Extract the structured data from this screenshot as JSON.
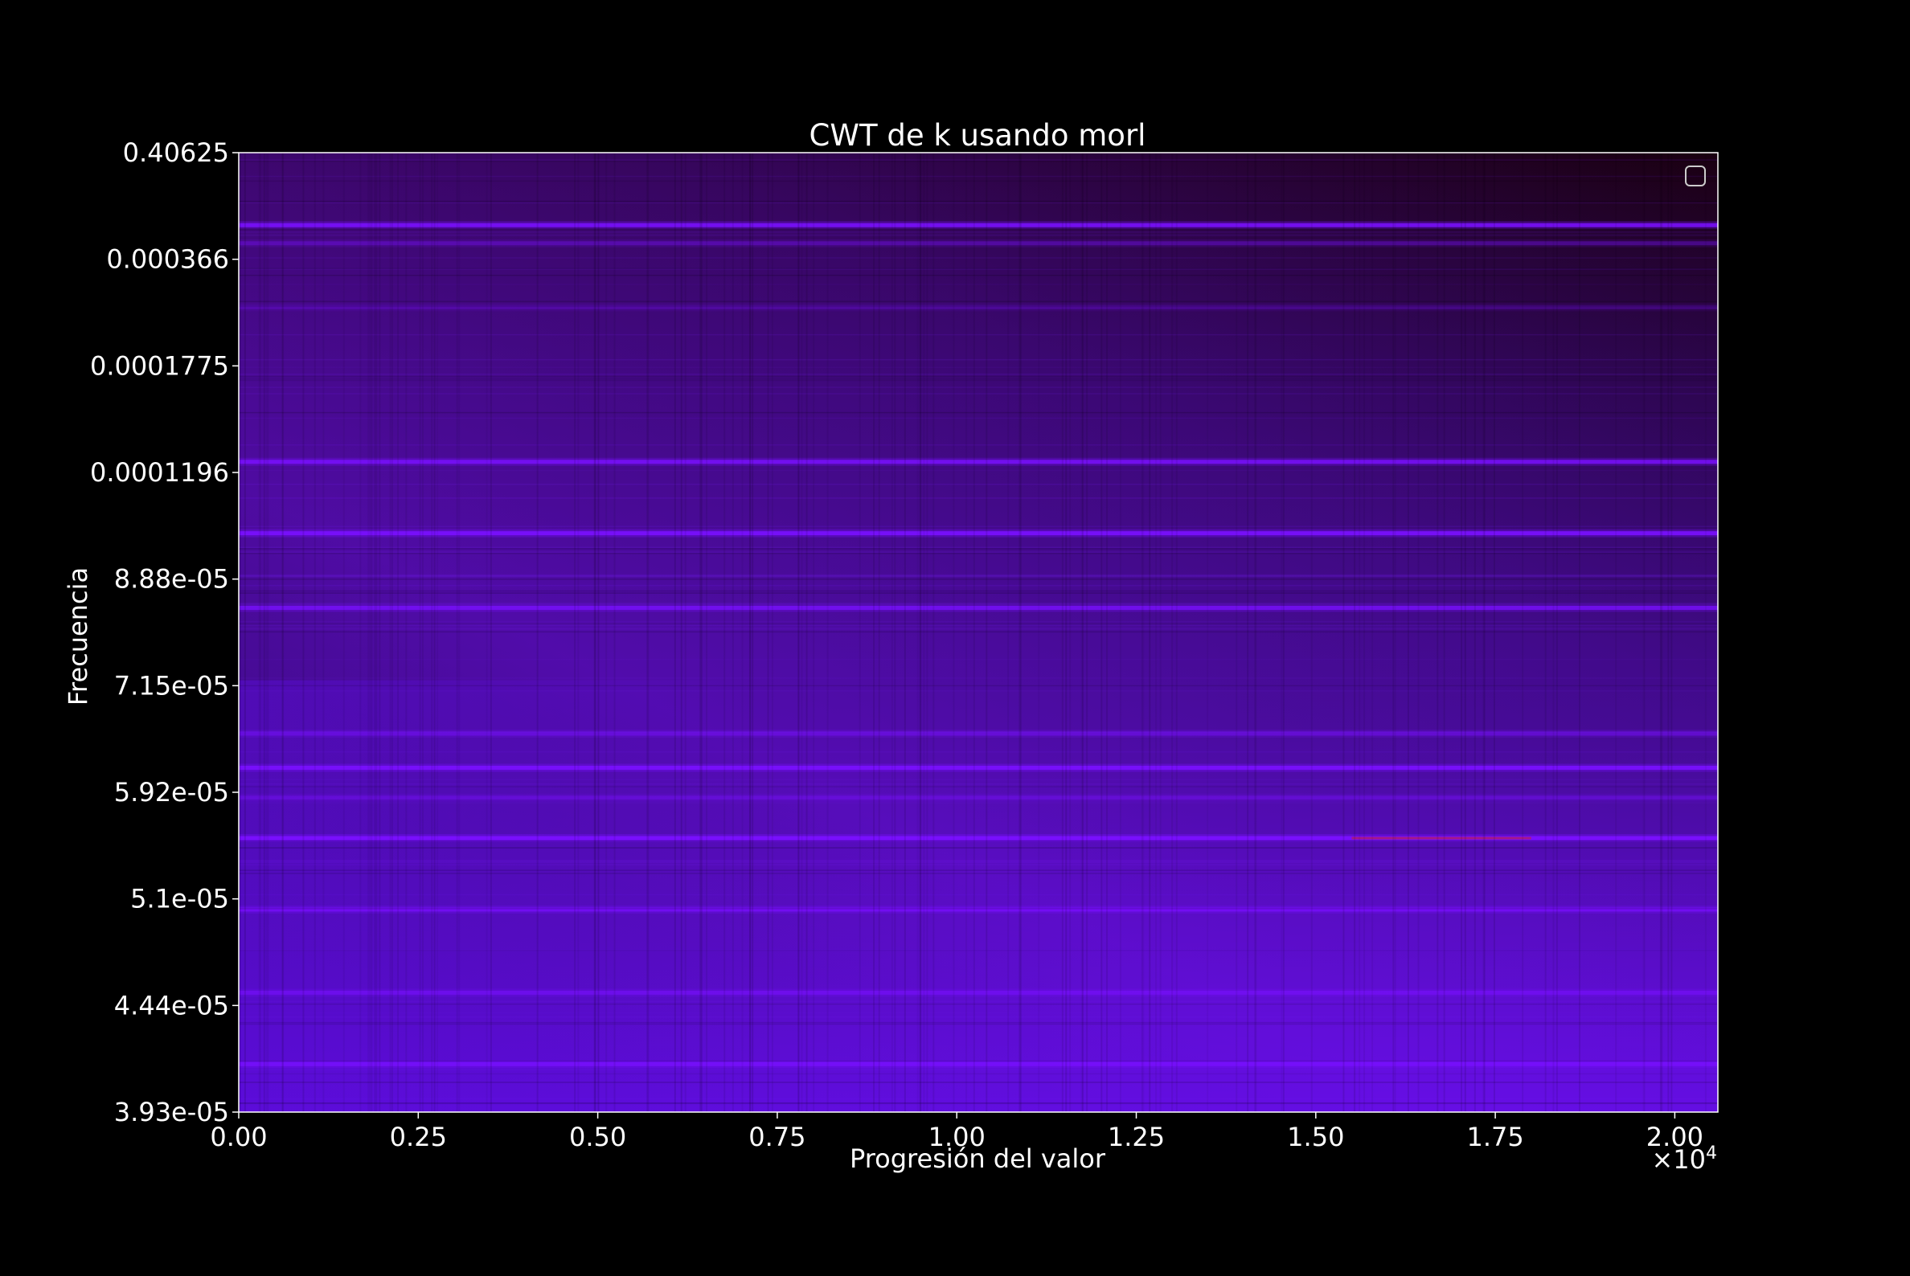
{
  "chart_data": {
    "type": "heatmap",
    "title": "CWT de k usando morl",
    "xlabel": "Progresión del valor",
    "ylabel": "Frecuencia",
    "x_multiplier_label": "×10",
    "x_multiplier_exponent": "4",
    "xlim": [
      0,
      2.06
    ],
    "xticks": [
      {
        "value": 0.0,
        "label": "0.00"
      },
      {
        "value": 0.25,
        "label": "0.25"
      },
      {
        "value": 0.5,
        "label": "0.50"
      },
      {
        "value": 0.75,
        "label": "0.75"
      },
      {
        "value": 1.0,
        "label": "1.00"
      },
      {
        "value": 1.25,
        "label": "1.25"
      },
      {
        "value": 1.5,
        "label": "1.50"
      },
      {
        "value": 1.75,
        "label": "1.75"
      },
      {
        "value": 2.0,
        "label": "2.00"
      }
    ],
    "ylim": [
      0,
      9
    ],
    "yticks": [
      {
        "value": 0,
        "label": "0.40625"
      },
      {
        "value": 1,
        "label": "0.000366"
      },
      {
        "value": 2,
        "label": "0.0001775"
      },
      {
        "value": 3,
        "label": "0.0001196"
      },
      {
        "value": 4,
        "label": "8.88e-05"
      },
      {
        "value": 5,
        "label": "7.15e-05"
      },
      {
        "value": 6,
        "label": "5.92e-05"
      },
      {
        "value": 7,
        "label": "5.1e-05"
      },
      {
        "value": 8,
        "label": "4.44e-05"
      },
      {
        "value": 9,
        "label": "3.93e-05"
      }
    ],
    "horizontal_bands": [
      {
        "y": 0.68,
        "intensity": 0.85
      },
      {
        "y": 0.85,
        "intensity": 0.35
      },
      {
        "y": 1.45,
        "intensity": 0.25
      },
      {
        "y": 2.9,
        "intensity": 0.8
      },
      {
        "y": 3.57,
        "intensity": 0.9
      },
      {
        "y": 4.27,
        "intensity": 0.75
      },
      {
        "y": 5.45,
        "intensity": 0.45
      },
      {
        "y": 5.77,
        "intensity": 0.9
      },
      {
        "y": 6.05,
        "intensity": 0.35
      },
      {
        "y": 6.43,
        "intensity": 0.95
      },
      {
        "y": 7.1,
        "intensity": 0.7
      },
      {
        "y": 7.88,
        "intensity": 0.55
      },
      {
        "y": 8.55,
        "intensity": 0.75
      }
    ],
    "colormap": {
      "low": "#120008",
      "mid": "#3a0a80",
      "high": "#7a10ff",
      "peak": "#c0203a"
    },
    "legend": {
      "placement": "top-right",
      "entries": []
    },
    "grid": false
  },
  "colors": {
    "background": "#000000",
    "axes": "#ffffff",
    "text": "#ffffff"
  }
}
